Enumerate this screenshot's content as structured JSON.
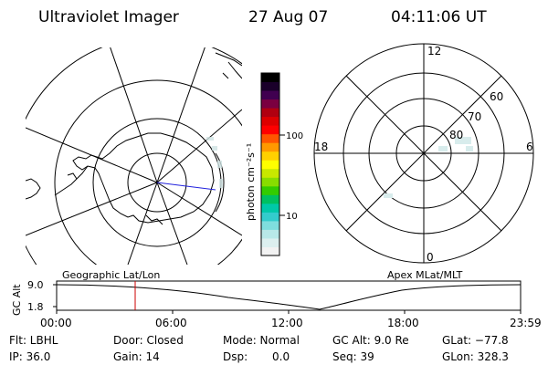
{
  "header": {
    "title": "Ultraviolet Imager",
    "date": "27 Aug 07",
    "time": "04:11:06 UT"
  },
  "colorbar": {
    "label": "photon cm⁻²s⁻¹",
    "tick_100": "100",
    "tick_10": "10",
    "colors": [
      "#f2f2f2",
      "#dcefef",
      "#b8e8e8",
      "#7fdede",
      "#33cccc",
      "#00c8a8",
      "#00c060",
      "#33cc00",
      "#88dd00",
      "#c8e800",
      "#ffff00",
      "#ffd000",
      "#ff9900",
      "#ff5500",
      "#ff0000",
      "#dd0000",
      "#b00010",
      "#7a0040",
      "#400050",
      "#1a002a",
      "#000000"
    ]
  },
  "left_panel": {
    "caption": "Geographic Lat/Lon"
  },
  "right_panel": {
    "caption": "Apex MLat/MLT",
    "mlt_labels": {
      "top": "12",
      "left": "18",
      "right": "6",
      "bottom": "0"
    },
    "lat_labels": [
      "60",
      "70",
      "80"
    ]
  },
  "timeline": {
    "ylabel": "GC Alt",
    "y_ticks": [
      "9.0",
      "1.8"
    ],
    "x_ticks": [
      "00:00",
      "06:00",
      "12:00",
      "18:00",
      "23:59"
    ],
    "marker_color": "#cc0000"
  },
  "info": {
    "filter": "Flt: LBHL",
    "ip": "IP: 36.0",
    "door": "Door: Closed",
    "gain": "Gain: 14",
    "mode": "Mode: Normal",
    "dsp": "Dsp:",
    "dsp_val": "0.0",
    "gc_alt": "GC Alt: 9.0 Re",
    "seq": "Seq: 39",
    "glat": "GLat: −77.8",
    "glon": "GLon: 328.3"
  }
}
